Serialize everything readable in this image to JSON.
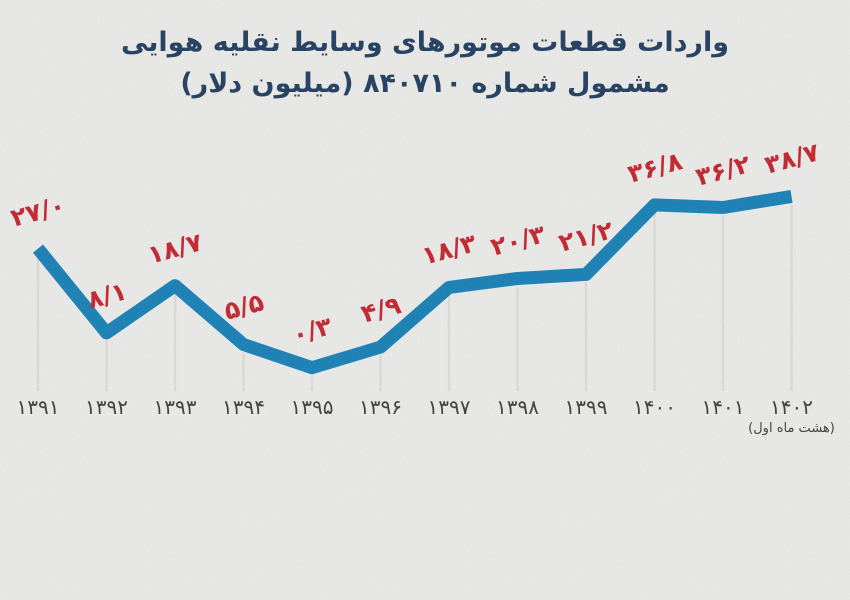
{
  "title": {
    "line1": "واردات قطعات موتورهای وسایط نقلیه هوایی",
    "line2": "مشمول شماره ۸۴۰۷۱۰ (میلیون دلار)"
  },
  "chart_data": {
    "type": "line",
    "title": "واردات قطعات موتورهای وسایط نقلیه هوایی مشمول شماره ۸۴۰۷۱۰ (میلیون دلار)",
    "unit_label": "میلیون دلار",
    "categories": [
      "۱۳۹۱",
      "۱۳۹۲",
      "۱۳۹۳",
      "۱۳۹۴",
      "۱۳۹۵",
      "۱۳۹۶",
      "۱۳۹۷",
      "۱۳۹۸",
      "۱۳۹۹",
      "۱۴۰۰",
      "۱۴۰۱",
      "۱۴۰۲"
    ],
    "values": [
      27.0,
      8.1,
      18.7,
      5.5,
      0.3,
      4.9,
      18.3,
      20.3,
      21.2,
      36.8,
      36.2,
      38.7
    ],
    "value_labels": [
      "۲۷/۰",
      "۸/۱",
      "۱۸/۷",
      "۵/۵",
      "۰/۳",
      "۴/۹",
      "۱۸/۳",
      "۲۰/۳",
      "۲۱/۲",
      "۳۶/۸",
      "۳۶/۲",
      "۳۸/۷"
    ],
    "last_category_note": "(هشت ماه اول)",
    "ylim": [
      0,
      42
    ],
    "grid": "vertical-droplines",
    "legend": "none",
    "xlabel": "",
    "ylabel": ""
  },
  "colors": {
    "background": "#eaeae8",
    "title": "#1e3a5c",
    "line": "#147eb4",
    "value_label": "#c3212b",
    "axis_label": "#3a3a3a",
    "gridline": "#dcdbd7"
  }
}
